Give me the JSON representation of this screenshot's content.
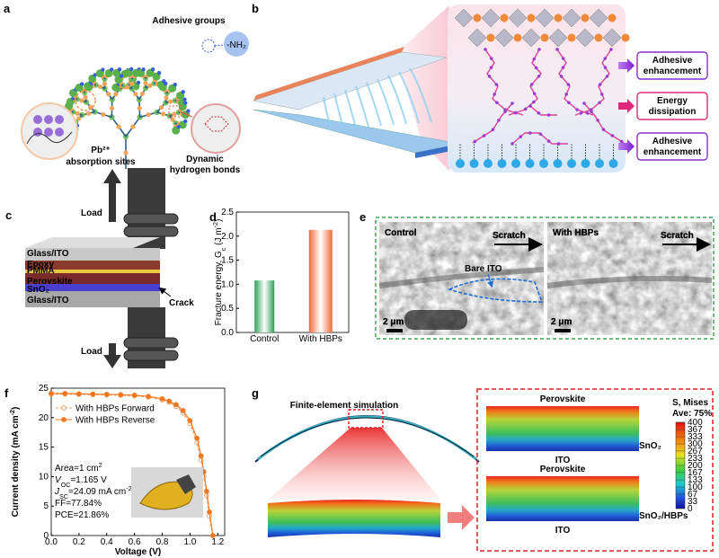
{
  "panels": {
    "a": {
      "label": "a",
      "adhesive_groups": "Adhesive groups",
      "nh2": "-NH₂",
      "pb_sites": [
        "Pb²⁺",
        "absorption sites"
      ],
      "hydrogen_bonds": [
        "Dynamic",
        "hydrogen bonds"
      ]
    },
    "b": {
      "label": "b",
      "boxes": [
        [
          "Adhesive",
          "enhancement"
        ],
        [
          "Energy",
          "dissipation"
        ],
        [
          "Adhesive",
          "enhancement"
        ]
      ]
    },
    "c": {
      "label": "c",
      "load_top": "Load",
      "load_bottom": "Load",
      "layers": [
        "Glass/ITO",
        "Epoxy",
        "PMMA",
        "Perovskite",
        "SnO₂",
        "Glass/ITO"
      ],
      "crack": "Crack"
    },
    "e": {
      "label": "e",
      "left": {
        "title": "Control",
        "scratch": "Scratch",
        "bare": "Bare ITO",
        "scale": "2 μm"
      },
      "right": {
        "title": "With HBPs",
        "scratch": "Scratch",
        "scale": "2 μm"
      }
    },
    "g": {
      "label": "g",
      "simulation": "Finite-element simulation",
      "top": {
        "upper": "Perovskite",
        "side": "SnO₂",
        "lower": "ITO"
      },
      "bottom": {
        "upper": "Perovskite",
        "side": "SnO₂/HBPs",
        "lower": "ITO"
      },
      "colorbar": {
        "title": "S, Mises",
        "average": "Ave: 75%",
        "ticks": [
          400,
          367,
          333,
          300,
          267,
          233,
          200,
          167,
          133,
          100,
          67,
          33,
          0
        ]
      }
    }
  },
  "chart_data": [
    {
      "type": "bar",
      "panel": "d",
      "y_label": {
        "text": "Fracture energy, G",
        "sub": "c",
        "unit": " (J m",
        "sup": "-2",
        "close": ")"
      },
      "categories": [
        "Control",
        "With HBPs"
      ],
      "values": [
        1.08,
        2.13
      ],
      "colors": [
        "#2e9e5b",
        "#f26b3a"
      ],
      "ylim": [
        0,
        2.5
      ],
      "yticks": [
        {
          "value": 0,
          "label": "0.0"
        },
        0.5,
        {
          "value": 1,
          "label": "1.0"
        },
        1.5,
        {
          "value": 2,
          "label": "2.0"
        },
        2.5
      ]
    },
    {
      "type": "line",
      "panel": "f",
      "x_label": "Voltage (V)",
      "y_label": {
        "text": "Current density (mA cm",
        "sup": "-2",
        "close": ")"
      },
      "x": [
        0,
        0.1,
        0.2,
        0.3,
        0.4,
        0.5,
        0.6,
        0.7,
        0.8,
        0.85,
        0.9,
        0.95,
        1.0,
        1.05,
        1.08,
        1.1,
        1.12,
        1.14,
        1.165
      ],
      "series": [
        {
          "name": "With HBPs Forward",
          "color": "#f0a060",
          "line_style": "dashed",
          "marker": "open",
          "values": [
            24.0,
            24.0,
            23.95,
            23.9,
            23.85,
            23.8,
            23.7,
            23.5,
            23.0,
            22.6,
            21.9,
            20.8,
            19.0,
            15.8,
            12.8,
            10.0,
            6.8,
            3.3,
            0
          ]
        },
        {
          "name": "With HBPs Reverse",
          "color": "#f07820",
          "line_style": "solid",
          "marker": "filled",
          "values": [
            24.1,
            24.1,
            24.05,
            24.0,
            23.95,
            23.9,
            23.8,
            23.6,
            23.2,
            22.8,
            22.2,
            21.2,
            19.5,
            16.5,
            13.5,
            10.8,
            7.5,
            4.0,
            0
          ]
        }
      ],
      "annotations": {
        "area": {
          "text": "Area=1 cm",
          "sup": "2"
        },
        "voc": {
          "symbol": "V",
          "sub": "OC",
          "text": "=1.165 V"
        },
        "jsc": {
          "symbol": "J",
          "sub": "SC",
          "text": "=24.09 mA cm",
          "sup": "-2"
        },
        "ff": "FF=77.84%",
        "pce": "PCE=21.86%"
      },
      "xlim": [
        0,
        1.25
      ],
      "ylim": [
        0,
        25
      ],
      "xticks": [
        {
          "value": 0,
          "label": "0.0"
        },
        0.2,
        0.4,
        0.6,
        0.8,
        {
          "value": 1,
          "label": "1.0"
        },
        1.2
      ],
      "yticks": [
        0,
        5,
        10,
        15,
        20,
        25
      ]
    }
  ]
}
